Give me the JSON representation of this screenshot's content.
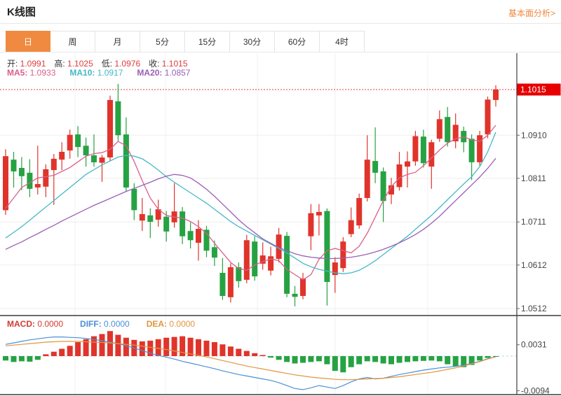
{
  "header": {
    "title": "K线图",
    "link_label": "基本面分析>"
  },
  "tabs": {
    "items": [
      {
        "label": "日",
        "active": true
      },
      {
        "label": "周",
        "active": false
      },
      {
        "label": "月",
        "active": false
      },
      {
        "label": "5分",
        "active": false
      },
      {
        "label": "15分",
        "active": false
      },
      {
        "label": "30分",
        "active": false
      },
      {
        "label": "60分",
        "active": false
      },
      {
        "label": "4时",
        "active": false
      }
    ]
  },
  "main_legend": {
    "items": [
      {
        "label": "开:",
        "value": "1.0991"
      },
      {
        "label": "高:",
        "value": "1.1025"
      },
      {
        "label": "低:",
        "value": "1.0976"
      },
      {
        "label": "收:",
        "value": "1.1015"
      }
    ]
  },
  "ma_legend": {
    "items": [
      {
        "label": "MA5:",
        "value": "1.0933",
        "color": "#d9608c"
      },
      {
        "label": "MA10:",
        "value": "1.0917",
        "color": "#45b8c7"
      },
      {
        "label": "MA20:",
        "value": "1.0857",
        "color": "#9a5fb5"
      }
    ]
  },
  "macd_legend": {
    "items": [
      {
        "label": "MACD:",
        "value": "0.0000",
        "color": "#d03a34"
      },
      {
        "label": "DIFF:",
        "value": "0.0000",
        "color": "#4a90d9"
      },
      {
        "label": "DEA:",
        "value": "0.0000",
        "color": "#e2953f"
      }
    ]
  },
  "colors": {
    "up": "#e0342b",
    "down": "#26a243",
    "ma5": "#d9608c",
    "ma10": "#45b8c7",
    "ma20": "#9a5fb5",
    "diff": "#4a90d9",
    "dea": "#e2953f",
    "accent": "#f08a40",
    "price_tag_bg": "#e60000",
    "grid": "#ededed",
    "vgrid": "#f0f0f0",
    "axis_text": "#444",
    "border": "#3c3c3c",
    "dotted_line": "#e23c3c",
    "zero_dash": "#b8d4e2"
  },
  "chart_data": {
    "type": "candlestick+macd",
    "title": "K线图",
    "price_axis": {
      "current": {
        "label": "1.1015",
        "price": 1.1015
      },
      "ticks": [
        {
          "label": "1.0910",
          "price": 1.091
        },
        {
          "label": "1.0811",
          "price": 1.0811
        },
        {
          "label": "1.0711",
          "price": 1.0711
        },
        {
          "label": "1.0612",
          "price": 1.0612
        },
        {
          "label": "1.0512",
          "price": 1.0512
        }
      ]
    },
    "macd_axis": {
      "ticks": [
        {
          "label": "0.0031",
          "value": 31
        },
        {
          "label": "-0.0094",
          "value": -94
        }
      ]
    },
    "candles": [
      [
        1.0738,
        1.0878,
        1.0727,
        1.0862
      ],
      [
        1.0854,
        1.0872,
        1.079,
        1.0827
      ],
      [
        1.0835,
        1.086,
        1.0784,
        1.0816
      ],
      [
        1.0824,
        1.0855,
        1.0768,
        1.0787
      ],
      [
        1.079,
        1.0886,
        1.0774,
        1.0798
      ],
      [
        1.0792,
        1.0843,
        1.0768,
        1.0832
      ],
      [
        1.083,
        1.0867,
        1.075,
        1.0856
      ],
      [
        1.0854,
        1.0894,
        1.083,
        1.0872
      ],
      [
        1.0875,
        1.0923,
        1.0856,
        1.0911
      ],
      [
        1.0912,
        1.0931,
        1.086,
        1.0883
      ],
      [
        1.0886,
        1.0905,
        1.0838,
        1.0864
      ],
      [
        1.0864,
        1.0912,
        1.0838,
        1.0848
      ],
      [
        1.0847,
        1.0865,
        1.0803,
        1.0859
      ],
      [
        1.0859,
        1.1001,
        1.085,
        1.0991
      ],
      [
        1.0988,
        1.1028,
        1.0897,
        1.091
      ],
      [
        1.0912,
        1.0951,
        1.078,
        1.079
      ],
      [
        1.0787,
        1.08,
        1.0715,
        1.0738
      ],
      [
        1.0714,
        1.0766,
        1.069,
        1.0729
      ],
      [
        1.0726,
        1.0742,
        1.0674,
        1.0711
      ],
      [
        1.0716,
        1.0762,
        1.07,
        1.074
      ],
      [
        1.0723,
        1.0736,
        1.0666,
        1.0689
      ],
      [
        1.071,
        1.08,
        1.0698,
        1.0735
      ],
      [
        1.0735,
        1.0745,
        1.066,
        1.0678
      ],
      [
        1.069,
        1.071,
        1.065,
        1.0669
      ],
      [
        1.0663,
        1.0715,
        1.0622,
        1.0695
      ],
      [
        1.0693,
        1.0702,
        1.063,
        1.0645
      ],
      [
        1.0653,
        1.0668,
        1.061,
        1.0629
      ],
      [
        1.0594,
        1.0628,
        1.0532,
        1.0541
      ],
      [
        1.0538,
        1.0616,
        1.0526,
        1.0607
      ],
      [
        1.0607,
        1.0618,
        1.056,
        1.0575
      ],
      [
        1.0578,
        1.0681,
        1.057,
        1.0669
      ],
      [
        1.0666,
        1.0678,
        1.0576,
        1.0586
      ],
      [
        1.0615,
        1.0664,
        1.0601,
        1.0634
      ],
      [
        1.0599,
        1.0654,
        1.0588,
        1.0632
      ],
      [
        1.0626,
        1.0697,
        1.0618,
        1.0682
      ],
      [
        1.0679,
        1.0688,
        1.0538,
        1.0546
      ],
      [
        1.0546,
        1.0564,
        1.0517,
        1.0539
      ],
      [
        1.0541,
        1.0594,
        1.0533,
        1.0581
      ],
      [
        1.0678,
        1.0752,
        1.0646,
        1.0731
      ],
      [
        1.0726,
        1.0752,
        1.068,
        1.0734
      ],
      [
        1.0736,
        1.0742,
        1.0519,
        1.0573
      ],
      [
        1.0589,
        1.063,
        1.0548,
        1.0618
      ],
      [
        1.0605,
        1.0676,
        1.0596,
        1.0666
      ],
      [
        1.0683,
        1.0744,
        1.0676,
        1.0715
      ],
      [
        1.0703,
        1.0776,
        1.0695,
        1.0766
      ],
      [
        1.0766,
        1.091,
        1.0758,
        1.0854
      ],
      [
        1.0851,
        1.0928,
        1.08,
        1.0824
      ],
      [
        1.0827,
        1.0836,
        1.0711,
        1.0759
      ],
      [
        1.0774,
        1.0812,
        1.0752,
        1.0795
      ],
      [
        1.0791,
        1.0872,
        1.0783,
        1.0843
      ],
      [
        1.0838,
        1.0873,
        1.079,
        1.085
      ],
      [
        1.085,
        1.092,
        1.084,
        1.0908
      ],
      [
        1.0907,
        1.0923,
        1.0836,
        1.0846
      ],
      [
        1.0838,
        1.09,
        1.0787,
        1.0894
      ],
      [
        1.0902,
        1.0967,
        1.0895,
        1.0947
      ],
      [
        1.0952,
        1.0975,
        1.0884,
        1.0894
      ],
      [
        1.0896,
        1.096,
        1.088,
        1.0934
      ],
      [
        1.092,
        1.093,
        1.0871,
        1.0894
      ],
      [
        1.0902,
        1.0912,
        1.0807,
        1.0848
      ],
      [
        1.0848,
        1.092,
        1.084,
        1.091
      ],
      [
        1.0912,
        1.0999,
        1.0903,
        1.0992
      ],
      [
        1.0991,
        1.1025,
        1.0976,
        1.1015
      ]
    ],
    "ma5": [
      1.0742,
      1.0766,
      1.079,
      1.0801,
      1.0812,
      1.0815,
      1.0818,
      1.0827,
      1.0836,
      1.0849,
      1.0862,
      1.0868,
      1.087,
      1.0878,
      1.0896,
      1.0886,
      1.085,
      1.0806,
      1.0766,
      1.074,
      1.0726,
      1.0722,
      1.072,
      1.0712,
      1.07,
      1.0685,
      1.0662,
      1.064,
      1.0618,
      1.0604,
      1.06,
      1.0612,
      1.062,
      1.0626,
      1.0622,
      1.0602,
      1.059,
      1.0578,
      1.059,
      1.0625,
      1.0645,
      1.065,
      1.0645,
      1.064,
      1.0655,
      1.0685,
      1.0722,
      1.076,
      1.0792,
      1.0812,
      1.082,
      1.0825,
      1.084,
      1.0858,
      1.0876,
      1.0892,
      1.0902,
      1.0906,
      1.09,
      1.0896,
      1.091,
      1.0933
    ],
    "ma10": [
      1.0674,
      1.0687,
      1.07,
      1.0715,
      1.073,
      1.0745,
      1.076,
      1.0775,
      1.079,
      1.0805,
      1.082,
      1.0831,
      1.0842,
      1.0851,
      1.086,
      1.0864,
      1.0862,
      1.0856,
      1.0844,
      1.083,
      1.0815,
      1.0802,
      1.079,
      1.0778,
      1.0766,
      1.0754,
      1.074,
      1.0726,
      1.0712,
      1.07,
      1.069,
      1.068,
      1.067,
      1.066,
      1.065,
      1.064,
      1.0628,
      1.0616,
      1.0608,
      1.0602,
      1.0598,
      1.0594,
      1.0592,
      1.0594,
      1.06,
      1.061,
      1.0622,
      1.0636,
      1.065,
      1.0664,
      1.0678,
      1.0694,
      1.071,
      1.0726,
      1.0744,
      1.0762,
      1.078,
      1.0798,
      1.0815,
      1.0838,
      1.0872,
      1.0917
    ],
    "ma20": [
      1.0648,
      1.0657,
      1.0665,
      1.0675,
      1.0684,
      1.0694,
      1.0703,
      1.0713,
      1.0722,
      1.0731,
      1.074,
      1.0749,
      1.0757,
      1.0765,
      1.0773,
      1.0781,
      1.0788,
      1.0795,
      1.0802,
      1.081,
      1.0816,
      1.082,
      1.0818,
      1.0812,
      1.08,
      1.0786,
      1.077,
      1.0752,
      1.0734,
      1.0716,
      1.07,
      1.0686,
      1.0672,
      1.0662,
      1.0652,
      1.0645,
      1.0638,
      1.0633,
      1.063,
      1.0628,
      1.0627,
      1.0627,
      1.0628,
      1.063,
      1.0633,
      1.0637,
      1.0642,
      1.0648,
      1.0655,
      1.0663,
      1.0672,
      1.0682,
      1.0694,
      1.0708,
      1.0724,
      1.0742,
      1.076,
      1.0778,
      1.0796,
      1.0814,
      1.0834,
      1.0857
    ],
    "macd_hist": [
      -12,
      -16,
      -14,
      -15,
      -10,
      5,
      12,
      20,
      28,
      38,
      46,
      54,
      60,
      68,
      58,
      50,
      44,
      40,
      42,
      46,
      50,
      52,
      54,
      50,
      46,
      42,
      38,
      32,
      26,
      20,
      14,
      8,
      3,
      -4,
      -10,
      -16,
      -20,
      -18,
      -16,
      -14,
      -22,
      -40,
      -44,
      -30,
      -22,
      -14,
      -16,
      -20,
      -22,
      -18,
      -16,
      -14,
      -13,
      -12,
      -14,
      -22,
      -28,
      -30,
      -24,
      -12,
      -5,
      -1
    ],
    "diff": [
      32,
      36,
      40,
      44,
      47,
      50,
      52,
      52,
      51,
      50,
      48,
      45,
      42,
      38,
      34,
      28,
      22,
      15,
      8,
      2,
      -3,
      -8,
      -14,
      -19,
      -24,
      -29,
      -34,
      -40,
      -45,
      -50,
      -54,
      -58,
      -62,
      -66,
      -72,
      -80,
      -88,
      -91,
      -86,
      -80,
      -84,
      -88,
      -80,
      -70,
      -62,
      -58,
      -62,
      -60,
      -55,
      -50,
      -46,
      -42,
      -38,
      -35,
      -32,
      -30,
      -28,
      -25,
      -20,
      -14,
      -7,
      -2
    ],
    "dea": [
      28,
      30,
      32,
      34,
      36,
      38,
      39,
      40,
      40,
      40,
      39,
      38,
      37,
      36,
      34,
      32,
      30,
      27,
      24,
      21,
      18,
      14,
      10,
      6,
      2,
      -2,
      -7,
      -12,
      -17,
      -22,
      -27,
      -31,
      -35,
      -39,
      -43,
      -47,
      -51,
      -54,
      -57,
      -59,
      -61,
      -63,
      -64,
      -64,
      -63,
      -62,
      -61,
      -60,
      -58,
      -56,
      -53,
      -50,
      -47,
      -44,
      -40,
      -36,
      -32,
      -27,
      -21,
      -15,
      -8,
      -2
    ]
  }
}
